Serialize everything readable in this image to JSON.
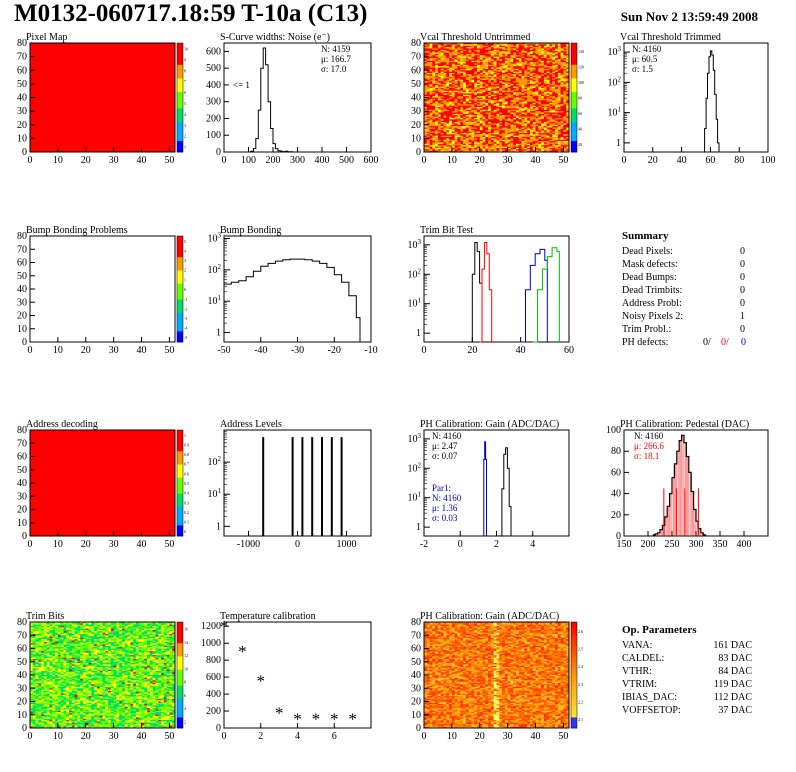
{
  "header": {
    "title": "M0132-060717.18:59 T-10a (C13)",
    "date": "Sun Nov  2 13:59:49 2008"
  },
  "colors": {
    "red": "#ff0000",
    "blue": "#0000cc",
    "green": "#00bb00",
    "black": "#000000"
  },
  "chart_data": [
    {
      "id": "pixel-map",
      "title": "Pixel Map",
      "type": "heatmap",
      "pattern": "uniform-max",
      "xlim": [
        0,
        52
      ],
      "ylim": [
        0,
        80
      ],
      "xticks": [
        0,
        10,
        20,
        30,
        40,
        50
      ],
      "yticks": [
        0,
        10,
        20,
        30,
        40,
        50,
        60,
        70,
        80
      ],
      "zlim": [
        0,
        10
      ],
      "colorbar_labels": [
        "10",
        "9",
        "8",
        "7",
        "6",
        "5",
        "4",
        "3",
        "2",
        "1"
      ]
    },
    {
      "id": "scurve",
      "title": "S-Curve widths: Noise (e⁻)",
      "type": "line",
      "yscale": "linear",
      "xlim": [
        0,
        600
      ],
      "ylim": [
        0,
        650
      ],
      "xticks": [
        0,
        100,
        200,
        300,
        400,
        500,
        600
      ],
      "yticks": [
        0,
        100,
        200,
        300,
        400,
        500,
        600
      ],
      "stats": [
        "N: 4159",
        "μ: 166.7",
        "σ: 17.0"
      ],
      "annotation": "<= 1",
      "series": [
        {
          "color": "#000000",
          "x": [
            100,
            110,
            120,
            130,
            140,
            150,
            160,
            170,
            180,
            190,
            200,
            210,
            220,
            230,
            240,
            250,
            260,
            270,
            280
          ],
          "y": [
            0,
            5,
            20,
            80,
            250,
            500,
            620,
            520,
            300,
            140,
            50,
            20,
            8,
            4,
            2,
            4,
            2,
            1,
            0
          ]
        }
      ]
    },
    {
      "id": "vcal-untrimmed",
      "title": "Vcal Threshold Untrimmed",
      "type": "heatmap",
      "pattern": "noise-warm",
      "xlim": [
        0,
        52
      ],
      "ylim": [
        0,
        80
      ],
      "xticks": [
        0,
        10,
        20,
        30,
        40,
        50
      ],
      "yticks": [
        0,
        10,
        20,
        30,
        40,
        50,
        60,
        70,
        80
      ],
      "colorbar_labels": [
        "140",
        "120",
        "100",
        "80",
        "60",
        "40",
        "20"
      ]
    },
    {
      "id": "vcal-trimmed",
      "title": "Vcal Threshold Trimmed",
      "type": "line",
      "yscale": "log",
      "xlim": [
        0,
        100
      ],
      "ylim": [
        0.5,
        2000
      ],
      "xticks": [
        0,
        20,
        40,
        60,
        80,
        100
      ],
      "ydecades": [
        1,
        10,
        100,
        1000
      ],
      "stats": [
        "N: 4160",
        "μ: 60.5",
        "σ:  1.5"
      ],
      "series": [
        {
          "color": "#000000",
          "x": [
            55,
            56,
            57,
            58,
            59,
            60,
            61,
            62,
            63,
            64,
            65,
            66
          ],
          "y": [
            0.5,
            3,
            30,
            200,
            700,
            1100,
            800,
            250,
            40,
            6,
            1,
            0.5
          ]
        }
      ]
    },
    {
      "id": "bump-problems",
      "title": "Bump Bonding Problems",
      "type": "heatmap",
      "pattern": "empty",
      "xlim": [
        0,
        52
      ],
      "ylim": [
        0,
        80
      ],
      "xticks": [
        0,
        10,
        20,
        30,
        40,
        50
      ],
      "yticks": [
        0,
        10,
        20,
        30,
        40,
        50,
        60,
        70,
        80
      ],
      "colorbar_labels": [
        "5",
        "4",
        "3",
        "2",
        "1",
        "0",
        "-1",
        "-2",
        "-3",
        "-4",
        "-5"
      ]
    },
    {
      "id": "bump-bonding",
      "title": "Bump Bonding",
      "type": "line",
      "yscale": "log",
      "xlim": [
        -50,
        -10
      ],
      "ylim": [
        0.5,
        1200
      ],
      "xticks": [
        -50,
        -40,
        -30,
        -20,
        -10
      ],
      "ydecades": [
        1,
        10,
        100,
        1000
      ],
      "series": [
        {
          "color": "#000000",
          "x": [
            -50,
            -48,
            -46,
            -44,
            -42,
            -40,
            -38,
            -36,
            -34,
            -32,
            -30,
            -28,
            -26,
            -24,
            -22,
            -20,
            -18,
            -16,
            -14,
            -13
          ],
          "y": [
            35,
            40,
            45,
            60,
            90,
            130,
            160,
            190,
            210,
            220,
            220,
            210,
            190,
            160,
            120,
            70,
            40,
            15,
            3,
            0.5
          ]
        }
      ]
    },
    {
      "id": "trim-bit-test",
      "title": "Trim Bit Test",
      "type": "line",
      "yscale": "log",
      "xlim": [
        0,
        60
      ],
      "ylim": [
        0.5,
        2000
      ],
      "xticks": [
        0,
        20,
        40,
        60
      ],
      "ydecades": [
        1,
        10,
        100,
        1000
      ],
      "series": [
        {
          "color": "#000000",
          "x": [
            19,
            20,
            21,
            22,
            23,
            24
          ],
          "y": [
            0.5,
            100,
            1200,
            600,
            50,
            0.5
          ]
        },
        {
          "color": "#ff0000",
          "x": [
            23,
            24,
            25,
            26,
            27,
            28
          ],
          "y": [
            0.5,
            150,
            1200,
            500,
            30,
            0.5
          ]
        },
        {
          "color": "#0000cc",
          "x": [
            40,
            42,
            44,
            46,
            48,
            50,
            51
          ],
          "y": [
            0.5,
            30,
            200,
            500,
            700,
            300,
            0.5
          ]
        },
        {
          "color": "#00bb00",
          "x": [
            45,
            47,
            49,
            51,
            53,
            55,
            56
          ],
          "y": [
            0.5,
            30,
            150,
            400,
            800,
            600,
            0.5
          ]
        }
      ]
    },
    {
      "id": "address-decoding",
      "title": "Address decoding",
      "type": "heatmap",
      "pattern": "uniform-max",
      "xlim": [
        0,
        52
      ],
      "ylim": [
        0,
        80
      ],
      "xticks": [
        0,
        10,
        20,
        30,
        40,
        50
      ],
      "yticks": [
        0,
        10,
        20,
        30,
        40,
        50,
        60,
        70,
        80
      ],
      "colorbar_labels": [
        "1",
        "0.9",
        "0.8",
        "0.7",
        "0.6",
        "0.5",
        "0.4",
        "0.3",
        "0.2",
        "0.1",
        "0"
      ]
    },
    {
      "id": "address-levels",
      "title": "Address Levels",
      "type": "line",
      "yscale": "log",
      "xlim": [
        -1500,
        1500
      ],
      "ylim": [
        0.5,
        1000
      ],
      "xticks": [
        -1000,
        0,
        1000
      ],
      "ydecades": [
        1,
        10,
        100
      ],
      "spikes": [
        -700,
        -100,
        100,
        300,
        500,
        700,
        900
      ],
      "spike_height": 600
    },
    {
      "id": "ph-gain",
      "title": "PH Calibration: Gain (ADC/DAC)",
      "type": "line",
      "yscale": "log",
      "xlim": [
        -2,
        6
      ],
      "ylim": [
        0.5,
        2000
      ],
      "xticks": [
        -2,
        0,
        2,
        4
      ],
      "ydecades": [
        1,
        10,
        100,
        1000
      ],
      "stats": [
        "N: 4160",
        "μ: 2.47",
        "σ: 0.07"
      ],
      "par1": [
        "Par1:",
        "N: 4160",
        "μ: 1.36",
        "σ: 0.03"
      ],
      "series": [
        {
          "color": "#000000",
          "x": [
            2.2,
            2.3,
            2.4,
            2.5,
            2.6,
            2.7,
            2.8
          ],
          "y": [
            0.5,
            20,
            300,
            500,
            100,
            5,
            0.5
          ]
        },
        {
          "color": "#0000cc",
          "x": [
            1.25,
            1.3,
            1.35,
            1.4,
            1.45
          ],
          "y": [
            0.5,
            200,
            800,
            200,
            0.5
          ]
        }
      ]
    },
    {
      "id": "ph-pedestal",
      "title": "PH Calibration: Pedestal (DAC)",
      "type": "bar",
      "xlim": [
        150,
        450
      ],
      "ylim": [
        0,
        100
      ],
      "xticks": [
        150,
        200,
        250,
        300,
        350,
        400
      ],
      "yticks": [
        0,
        20,
        40,
        60,
        80,
        100
      ],
      "stats": [
        "N: 4160",
        "μ: 266.6",
        "σ: 18.1"
      ],
      "markers": [
        233,
        259,
        277,
        305
      ],
      "series": [
        {
          "color": "#000000",
          "x": [
            210,
            215,
            220,
            225,
            230,
            235,
            240,
            245,
            250,
            255,
            260,
            265,
            270,
            275,
            280,
            285,
            290,
            295,
            300,
            305,
            310,
            315,
            320
          ],
          "y": [
            1,
            2,
            3,
            6,
            10,
            18,
            28,
            40,
            55,
            68,
            80,
            90,
            95,
            88,
            75,
            60,
            42,
            25,
            14,
            7,
            3,
            1,
            0
          ]
        }
      ]
    },
    {
      "id": "trim-bits",
      "title": "Trim Bits",
      "type": "heatmap",
      "pattern": "noise-midrange",
      "xlim": [
        0,
        52
      ],
      "ylim": [
        0,
        80
      ],
      "xticks": [
        0,
        10,
        20,
        30,
        40,
        50
      ],
      "yticks": [
        0,
        10,
        20,
        30,
        40,
        50,
        60,
        70,
        80
      ],
      "colorbar_labels": [
        "16",
        "14",
        "12",
        "10",
        "8",
        "6",
        "4",
        "2"
      ]
    },
    {
      "id": "temperature",
      "title": "Temperature calibration",
      "type": "scatter",
      "xlim": [
        0,
        8
      ],
      "ylim": [
        0,
        1250
      ],
      "xticks": [
        0,
        2,
        4,
        6
      ],
      "yticks": [
        0,
        200,
        400,
        600,
        800,
        1000,
        1200
      ],
      "x": [
        0,
        1,
        2,
        3,
        4,
        5,
        6,
        7
      ],
      "y": [
        1200,
        910,
        560,
        180,
        110,
        110,
        110,
        110
      ]
    },
    {
      "id": "ph-gain-map",
      "title": "PH Calibration: Gain (ADC/DAC)",
      "type": "heatmap",
      "pattern": "noise-hot",
      "xlim": [
        0,
        52
      ],
      "ylim": [
        0,
        80
      ],
      "xticks": [
        0,
        10,
        20,
        30,
        40,
        50
      ],
      "yticks": [
        0,
        10,
        20,
        30,
        40,
        50,
        60,
        70,
        80
      ],
      "colorbar_labels": [
        "2.6",
        "2.5",
        "2.4",
        "2.3",
        "2.2",
        "2.1"
      ]
    }
  ],
  "summary": {
    "title": "Summary",
    "rows": [
      {
        "label": "Dead Pixels:",
        "value": "0"
      },
      {
        "label": "Mask defects:",
        "value": "0"
      },
      {
        "label": "Dead Bumps:",
        "value": "0"
      },
      {
        "label": "Dead Trimbits:",
        "value": "0"
      },
      {
        "label": "Address Probl:",
        "value": "0"
      },
      {
        "label": "Noisy Pixels 2:",
        "value": "1"
      },
      {
        "label": "Trim Probl.:",
        "value": "0"
      }
    ],
    "ph_defects": {
      "label": "PH defects:",
      "values": [
        "0/",
        "0/",
        "0"
      ]
    }
  },
  "op_parameters": {
    "title": "Op. Parameters",
    "rows": [
      {
        "label": "VANA:",
        "value": "161 DAC"
      },
      {
        "label": "CALDEL:",
        "value": "83 DAC"
      },
      {
        "label": "VTHR:",
        "value": "84 DAC"
      },
      {
        "label": "VTRIM:",
        "value": "119 DAC"
      },
      {
        "label": "IBIAS_DAC:",
        "value": "112 DAC"
      },
      {
        "label": "VOFFSETOP:",
        "value": "37 DAC"
      }
    ]
  }
}
